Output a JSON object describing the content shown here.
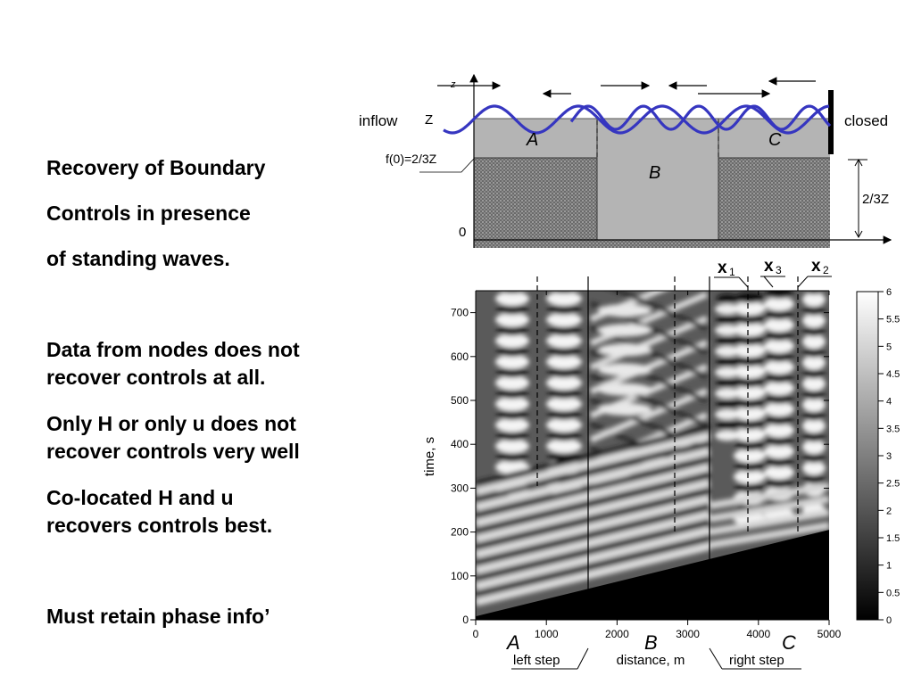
{
  "slide": {
    "title_lines": [
      "Recovery of Boundary",
      "Controls in presence",
      "of standing waves."
    ],
    "points": [
      {
        "lines": [
          "Data from nodes does not",
          "recover controls at all."
        ]
      },
      {
        "lines": [
          "Only H or only u does not",
          "recover controls very well"
        ]
      },
      {
        "lines": [
          "Co-located H and u",
          "recovers controls best."
        ]
      },
      {
        "lines": [
          "Must retain phase info’"
        ]
      }
    ]
  },
  "channel_diagram": {
    "inflow_label": "inflow",
    "closed_label": "closed",
    "z_axis_label": "z",
    "surface_label": "Z",
    "step_height_label": "f(0)=2/3Z",
    "zero_label": "0",
    "right_height_label": "2/3Z",
    "region_labels": [
      "A",
      "B",
      "C"
    ],
    "wave_color": "#3636c0"
  },
  "spacetime_plot": {
    "ylabel": "time, s",
    "xlabel": "distance, m",
    "y_ticks": [
      "0",
      "100",
      "200",
      "300",
      "400",
      "500",
      "600",
      "700"
    ],
    "x_ticks": [
      "0",
      "1000",
      "2000",
      "3000",
      "4000",
      "5000"
    ],
    "colorbar_ticks": [
      "0",
      "0.5",
      "1",
      "1.5",
      "2",
      "2.5",
      "3",
      "3.5",
      "4",
      "4.5",
      "5",
      "5.5",
      "6"
    ],
    "region_labels": [
      "A",
      "B",
      "C"
    ],
    "bottom_labels": {
      "left": "left step",
      "right": "right step"
    },
    "sensor_labels": [
      "x",
      "x",
      "x"
    ],
    "sensor_subscripts": [
      "1",
      "3",
      "2"
    ],
    "xlim": [
      0,
      5000
    ],
    "ylim": [
      0,
      750
    ],
    "colorbar_range": [
      0,
      6
    ]
  }
}
